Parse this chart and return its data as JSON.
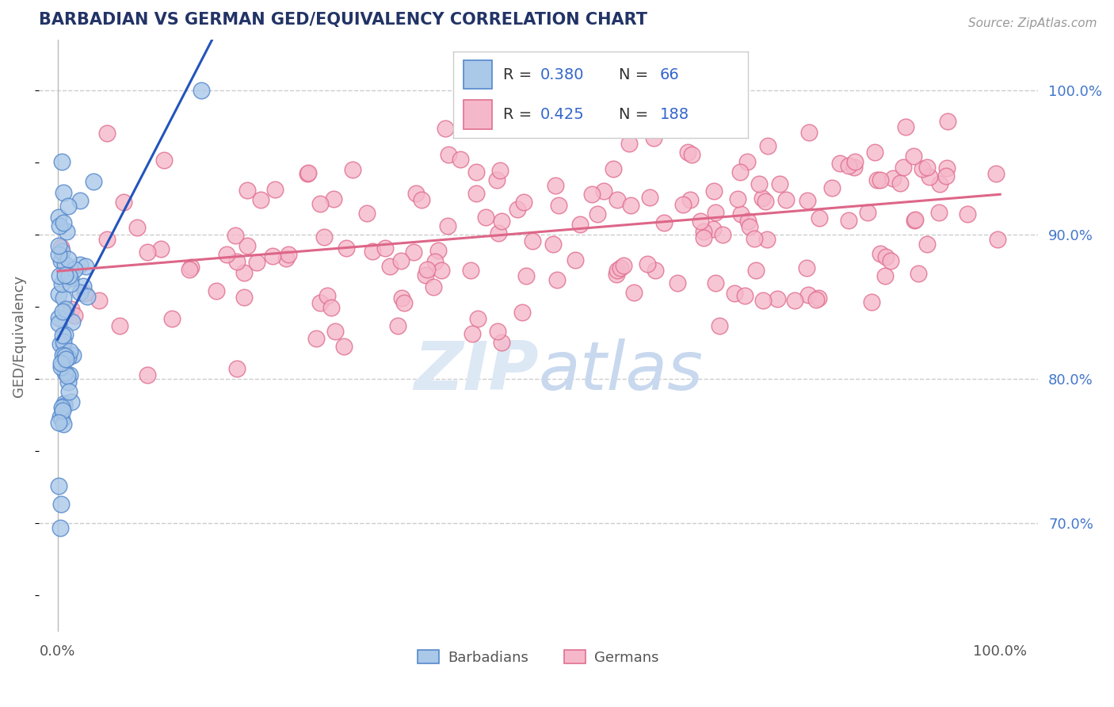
{
  "title": "BARBADIAN VS GERMAN GED/EQUIVALENCY CORRELATION CHART",
  "source": "Source: ZipAtlas.com",
  "ylabel": "GED/Equivalency",
  "right_ytick_vals": [
    0.7,
    0.8,
    0.9,
    1.0
  ],
  "right_yticklabels": [
    "70.0%",
    "80.0%",
    "90.0%",
    "100.0%"
  ],
  "xlim": [
    -0.02,
    1.04
  ],
  "ylim": [
    0.625,
    1.035
  ],
  "barbadian_fill": "#aac8e8",
  "barbadian_edge": "#5588cc",
  "german_fill": "#f5b8ca",
  "german_edge": "#e07090",
  "blue_line_color": "#2255bb",
  "pink_line_color": "#dd6688",
  "ytick_color": "#4477cc",
  "grid_color": "#cccccc",
  "title_color": "#223366",
  "source_color": "#999999",
  "ylabel_color": "#666666",
  "watermark_color": "#dde8f5",
  "R_barb": "0.380",
  "N_barb": "66",
  "R_germ": "0.425",
  "N_germ": "188",
  "legend_text_color": "#333333",
  "legend_num_color": "#3366cc"
}
